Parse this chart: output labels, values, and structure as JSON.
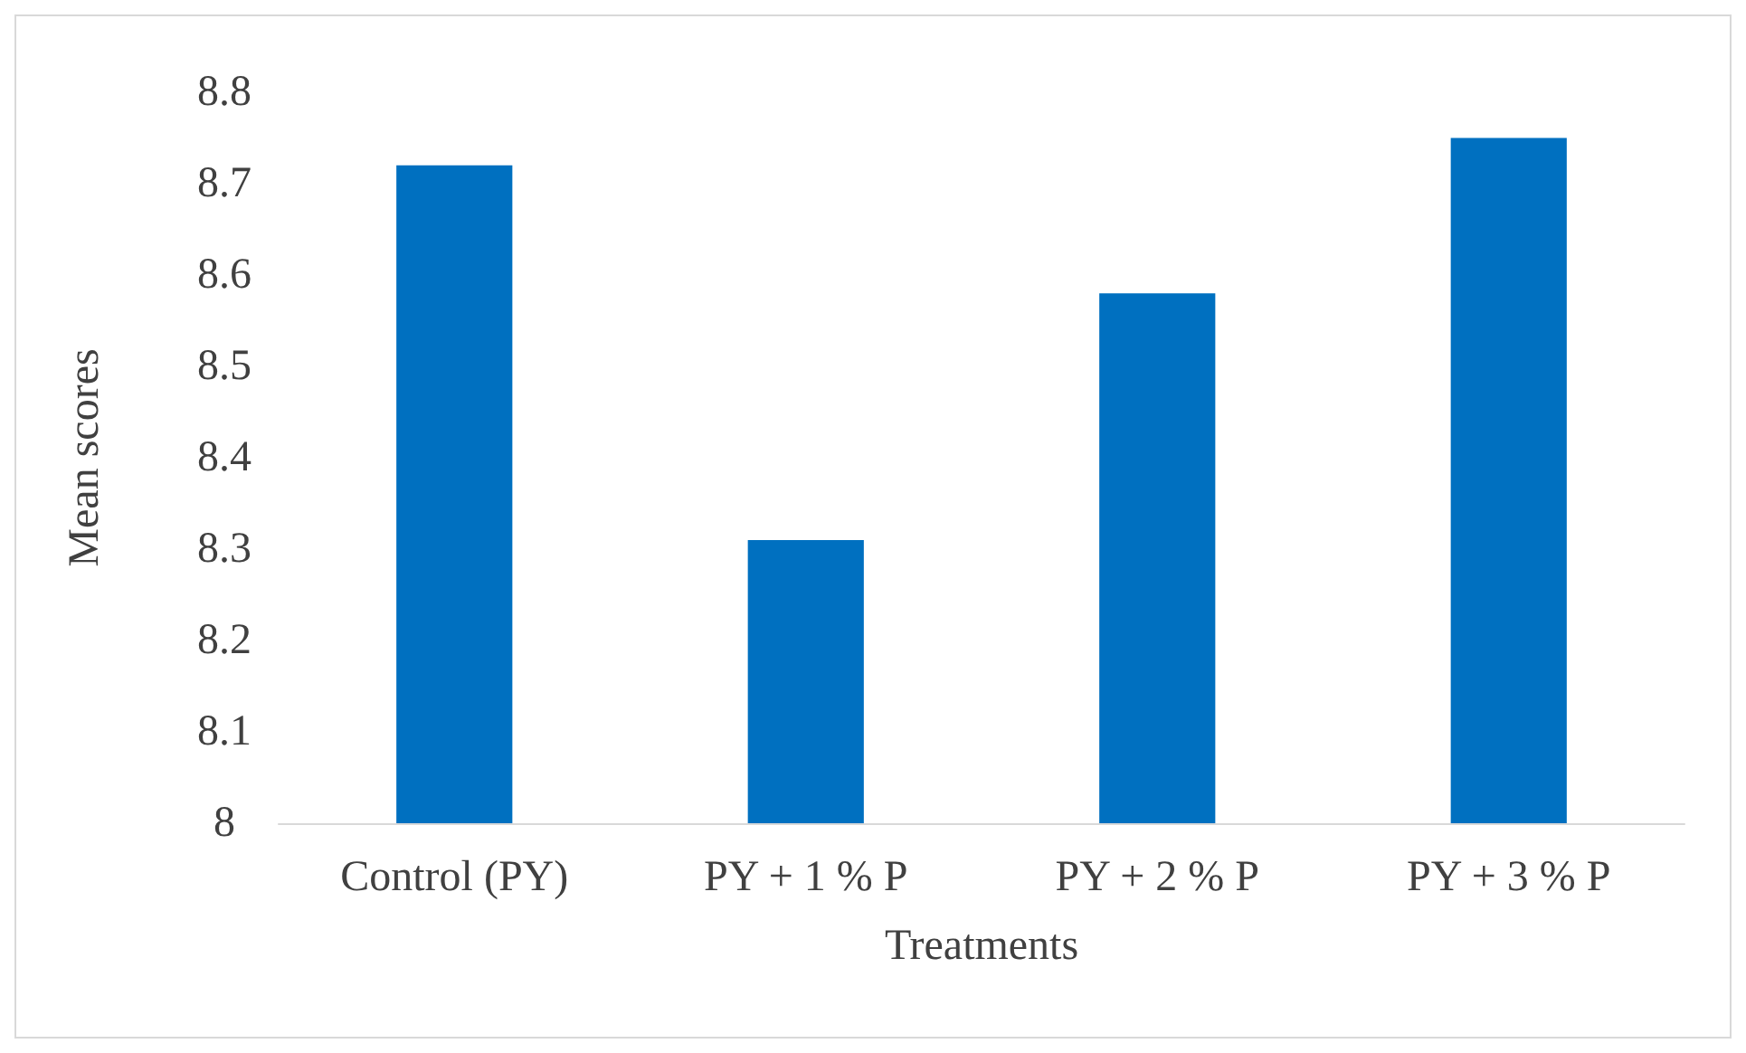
{
  "chart_data": {
    "type": "bar",
    "xlabel": "Treatments",
    "ylabel": "Mean scores",
    "categories": [
      "Control (PY)",
      "PY + 1 % P",
      "PY + 2 % P",
      "PY + 3 % P"
    ],
    "values": [
      8.72,
      8.31,
      8.58,
      8.75
    ],
    "color": "#0070c0",
    "ylim": [
      8,
      8.8
    ],
    "yticks": [
      8,
      8.1,
      8.2,
      8.3,
      8.4,
      8.5,
      8.6,
      8.7,
      8.8
    ],
    "grid": false
  }
}
